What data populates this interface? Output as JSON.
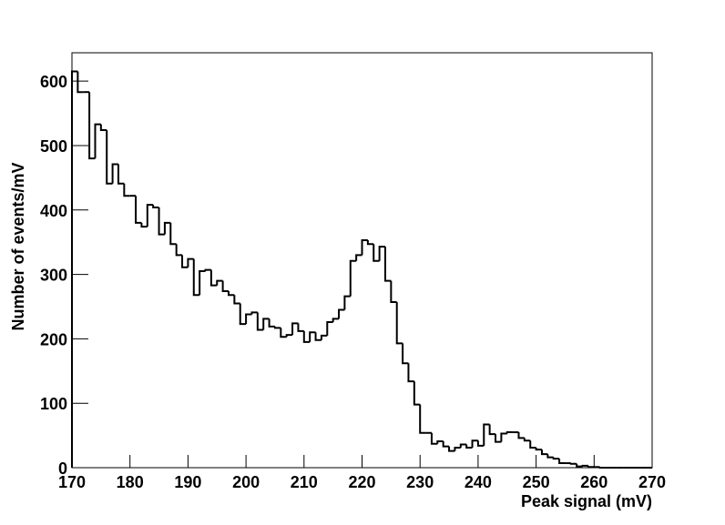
{
  "chart_data": {
    "type": "histogram",
    "x_label": "Peak signal (mV)",
    "y_label": "Number of events/mV",
    "color": "#000000",
    "bins": [
      170,
      171,
      172,
      173,
      174,
      175,
      176,
      177,
      178,
      179,
      180,
      181,
      182,
      183,
      184,
      185,
      186,
      187,
      188,
      189,
      190,
      191,
      192,
      193,
      194,
      195,
      196,
      197,
      198,
      199,
      200,
      201,
      202,
      203,
      204,
      205,
      206,
      207,
      208,
      209,
      210,
      211,
      212,
      213,
      214,
      215,
      216,
      217,
      218,
      219,
      220,
      221,
      222,
      223,
      224,
      225,
      226,
      227,
      228,
      229,
      230,
      231,
      232,
      233,
      234,
      235,
      236,
      237,
      238,
      239,
      240,
      241,
      242,
      243,
      244,
      245,
      246,
      247,
      248,
      249,
      250,
      251,
      252,
      253,
      254,
      255,
      256,
      257,
      258,
      259,
      260,
      261,
      262,
      263,
      264,
      265,
      266,
      267,
      268,
      269,
      270
    ],
    "values": [
      615,
      583,
      583,
      480,
      533,
      524,
      441,
      471,
      441,
      422,
      422,
      380,
      374,
      408,
      404,
      362,
      380,
      347,
      330,
      311,
      324,
      268,
      305,
      307,
      283,
      290,
      274,
      268,
      255,
      223,
      238,
      241,
      214,
      231,
      219,
      217,
      203,
      206,
      224,
      212,
      195,
      210,
      198,
      205,
      226,
      231,
      245,
      266,
      321,
      330,
      353,
      347,
      321,
      343,
      290,
      257,
      193,
      162,
      134,
      98,
      54,
      54,
      37,
      41,
      33,
      26,
      31,
      36,
      31,
      42,
      34,
      67,
      52,
      40,
      53,
      55,
      55,
      46,
      42,
      31,
      28,
      21,
      16,
      14,
      7,
      7,
      6,
      2,
      3,
      1,
      1,
      0,
      0,
      0,
      0,
      0,
      0,
      0,
      0,
      0
    ],
    "xlim": [
      170,
      270
    ],
    "xticks": [
      170,
      180,
      190,
      200,
      210,
      220,
      230,
      240,
      250,
      260,
      270
    ],
    "ylim": [
      0,
      644
    ],
    "yticks": [
      0,
      100,
      200,
      300,
      400,
      500,
      600
    ]
  }
}
